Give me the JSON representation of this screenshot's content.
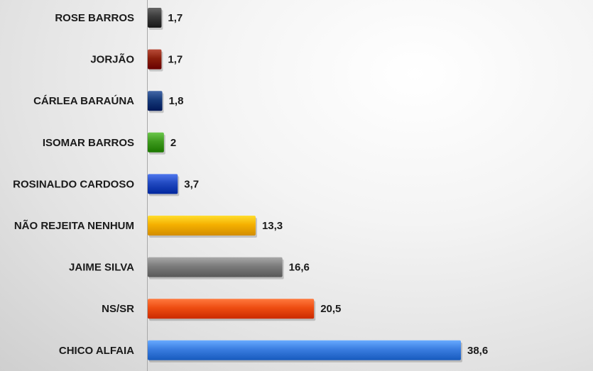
{
  "chart_data": {
    "type": "bar",
    "orientation": "horizontal",
    "categories": [
      "ROSE BARROS",
      "JORJÃO",
      "CÁRLEA BARAÚNA",
      "ISOMAR BARROS",
      "ROSINALDO CARDOSO",
      "NÃO REJEITA NENHUM",
      "JAIME SILVA",
      "NS/SR",
      "CHICO ALFAIA"
    ],
    "values": [
      1.7,
      1.7,
      1.8,
      2,
      3.7,
      13.3,
      16.6,
      20.5,
      38.6
    ],
    "value_labels": [
      "1,7",
      "1,7",
      "1,8",
      "2",
      "3,7",
      "13,3",
      "16,6",
      "20,5",
      "38,6"
    ],
    "colors": [
      "#3a3a3a",
      "#8b1f0c",
      "#163a7a",
      "#3e9a1e",
      "#2149c0",
      "#f5b000",
      "#7b7b7b",
      "#ee4d12",
      "#3a7de0"
    ],
    "title": "",
    "xlabel": "",
    "ylabel": "",
    "xlim": [
      0,
      40
    ],
    "grid": false,
    "legend": "none"
  }
}
